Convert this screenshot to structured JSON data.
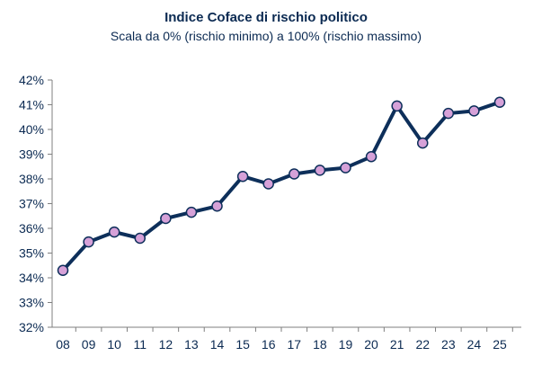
{
  "chart_data": {
    "type": "line",
    "title": "Indice Coface di rischio politico",
    "subtitle": "Scala da 0% (rischio minimo) a 100% (rischio massimo)",
    "xlabel": "",
    "ylabel": "",
    "categories": [
      "08",
      "09",
      "10",
      "11",
      "12",
      "13",
      "14",
      "15",
      "16",
      "17",
      "18",
      "19",
      "20",
      "21",
      "22",
      "23",
      "24",
      "25"
    ],
    "series": [
      {
        "values": [
          34.3,
          35.45,
          35.85,
          35.6,
          36.4,
          36.65,
          36.9,
          38.1,
          37.8,
          38.2,
          38.35,
          38.45,
          38.9,
          40.95,
          39.45,
          40.65,
          40.75,
          41.1
        ]
      }
    ],
    "ylim": [
      32,
      42
    ],
    "yticks": [
      32,
      33,
      34,
      35,
      36,
      37,
      38,
      39,
      40,
      41,
      42
    ],
    "ytick_labels": [
      "32%",
      "33%",
      "34%",
      "35%",
      "36%",
      "37%",
      "38%",
      "39%",
      "40%",
      "41%",
      "42%"
    ],
    "grid": false,
    "legend": "none",
    "colors": {
      "line": "#0d2f5a",
      "marker_fill": "#d6a1d8",
      "marker_stroke": "#0d2f5a",
      "text": "#0b2a52",
      "axis": "#7f7f7f"
    }
  }
}
